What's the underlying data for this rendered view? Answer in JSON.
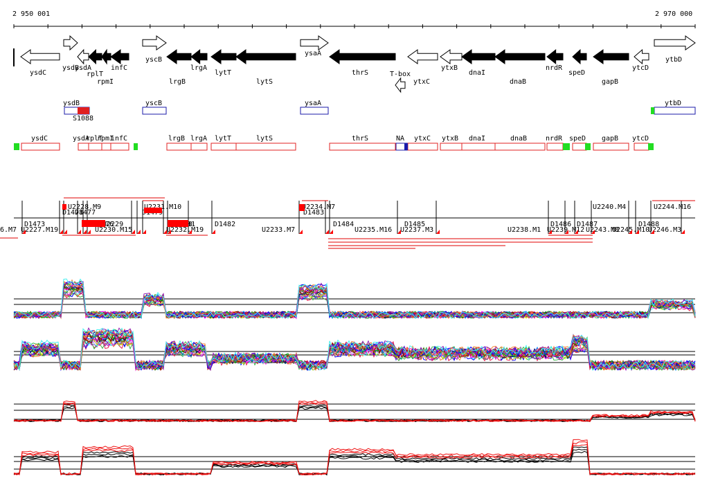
{
  "coords": {
    "start_label": "2 950 001",
    "end_label": "2 970 000"
  },
  "genes": [
    {
      "label": "ysdC",
      "strand": "-",
      "style": "open"
    },
    {
      "label": "ysdB",
      "strand": "+",
      "style": "open"
    },
    {
      "label": "ysdA",
      "strand": "-",
      "style": "open"
    },
    {
      "label": "rplT",
      "strand": "-",
      "style": "filled"
    },
    {
      "label": "rpmI",
      "strand": "-",
      "style": "filled"
    },
    {
      "label": "infC",
      "strand": "-",
      "style": "filled"
    },
    {
      "label": "yscB",
      "strand": "+",
      "style": "open"
    },
    {
      "label": "lrgB",
      "strand": "-",
      "style": "filled"
    },
    {
      "label": "lrgA",
      "strand": "-",
      "style": "filled"
    },
    {
      "label": "lytT",
      "strand": "-",
      "style": "filled"
    },
    {
      "label": "lytS",
      "strand": "-",
      "style": "filled"
    },
    {
      "label": "ysaA",
      "strand": "+",
      "style": "open"
    },
    {
      "label": "thrS",
      "strand": "-",
      "style": "filled"
    },
    {
      "label": "T-box",
      "strand": "-",
      "style": "open"
    },
    {
      "label": "ytxC",
      "strand": "-",
      "style": "open"
    },
    {
      "label": "ytxB",
      "strand": "-",
      "style": "open"
    },
    {
      "label": "dnaI",
      "strand": "-",
      "style": "filled"
    },
    {
      "label": "dnaB",
      "strand": "-",
      "style": "filled"
    },
    {
      "label": "nrdR",
      "strand": "-",
      "style": "filled"
    },
    {
      "label": "speD",
      "strand": "-",
      "style": "filled"
    },
    {
      "label": "gapB",
      "strand": "-",
      "style": "filled"
    },
    {
      "label": "ytcD",
      "strand": "-",
      "style": "open"
    },
    {
      "label": "ytbD",
      "strand": "+",
      "style": "open"
    }
  ],
  "plus_track": {
    "labels": [
      "ysdB",
      "S1088",
      "yscB",
      "ysaA",
      "ytbD"
    ]
  },
  "minus_track": {
    "labels": [
      "ysdC",
      "ysdA",
      "rplT",
      "rpmI",
      "infC",
      "lrgB",
      "lrgA",
      "lytT",
      "lytS",
      "thrS",
      "NA",
      "ytxC",
      "ytxB",
      "dnaI",
      "dnaB",
      "nrdR",
      "speD",
      "gapB",
      "ytcD"
    ]
  },
  "segments_top": {
    "labels": [
      "U2228.M9",
      "D1478",
      "D1477",
      "U2231.M10",
      "D1479",
      "U2234.M7",
      "D1483",
      "U2240.M4",
      "U2244.M16"
    ]
  },
  "segments_mid": {
    "labels": [
      "D1473",
      "U2229",
      "D1476",
      "D1480",
      "D1481",
      "D1482",
      "D1484",
      "D1485",
      "D1486",
      "D1487",
      "D1488"
    ]
  },
  "segments_bottom": {
    "labels": [
      "6.M7",
      "U2227.M19",
      "U2230.M15",
      "U2232.M19",
      "U2233.M7",
      "U2235.M16",
      "U2237.M3",
      "U2238.M1",
      "U2239.M12",
      "U2243.M8",
      "U2245.M10",
      "U2246.M3"
    ]
  },
  "colors": {
    "plus_box": "#1a1aaa",
    "minus_box": "#e02020",
    "terminator": "#22dd22",
    "signal_positive": "#000000",
    "signal_negative": "#ee1111"
  }
}
